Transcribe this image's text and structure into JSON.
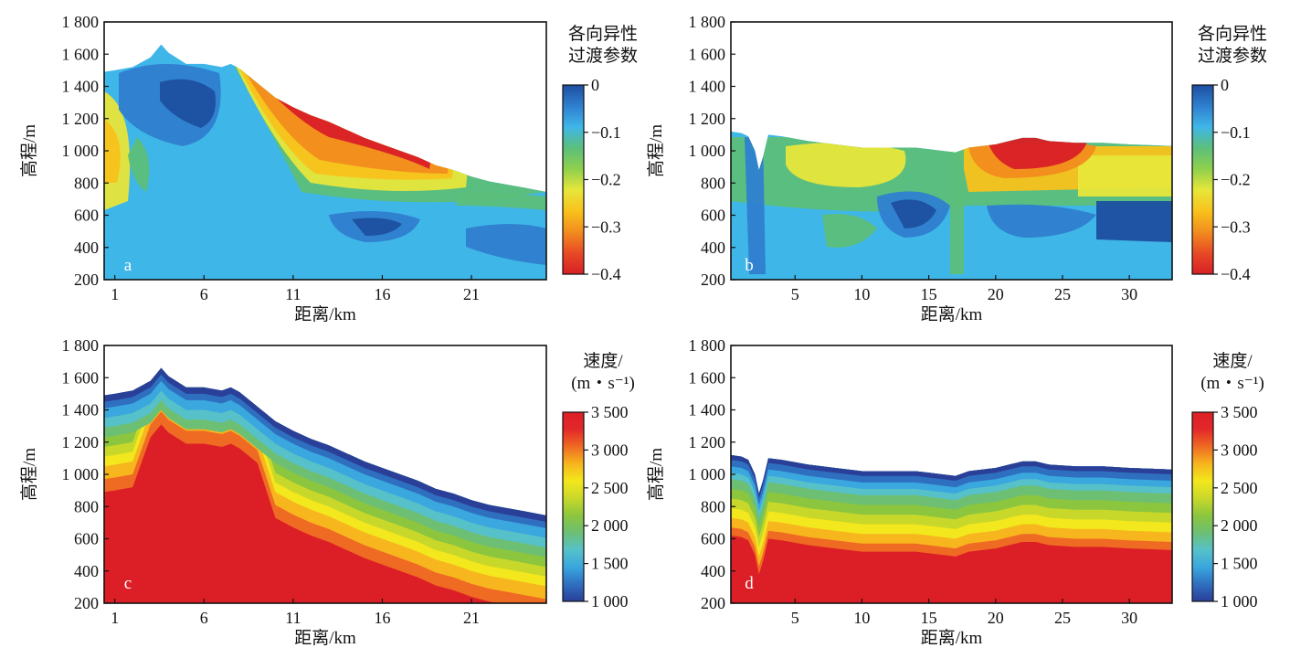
{
  "chart_data": [
    {
      "panel": "a",
      "type": "heatmap",
      "xlabel": "距离/km",
      "ylabel": "高程/m",
      "xlim": [
        0.4,
        25.2
      ],
      "ylim": [
        200,
        1800
      ],
      "x_ticks": [
        1,
        6,
        11,
        16,
        21
      ],
      "y_ticks": [
        200,
        400,
        600,
        800,
        1000,
        1200,
        1400,
        1600,
        1800
      ],
      "y_tick_labels": [
        "200",
        "400",
        "600",
        "800",
        "1 000",
        "1 200",
        "1 400",
        "1 600",
        "1 800"
      ],
      "surface": {
        "x": [
          0.4,
          1,
          2,
          3,
          3.6,
          4,
          5,
          6,
          7,
          7.5,
          8,
          9,
          10,
          11,
          12,
          13,
          14,
          15,
          16,
          17,
          18,
          19,
          20,
          21,
          22,
          23,
          24,
          25.2
        ],
        "elevation": [
          1490,
          1500,
          1520,
          1580,
          1660,
          1610,
          1540,
          1540,
          1520,
          1540,
          1510,
          1420,
          1330,
          1270,
          1220,
          1180,
          1130,
          1080,
          1040,
          1000,
          960,
          910,
          880,
          840,
          810,
          790,
          770,
          745
        ]
      },
      "colorbar": {
        "title": [
          "各向异性",
          "过渡参数"
        ],
        "range": [
          -0.4,
          0
        ],
        "ticks": [
          0,
          -0.1,
          -0.2,
          -0.3,
          -0.4
        ],
        "tick_labels": [
          "0",
          "−0.1",
          "−0.2",
          "−0.3",
          "−0.4"
        ]
      }
    },
    {
      "panel": "b",
      "type": "heatmap",
      "xlabel": "距离/km",
      "ylabel": "高程/m",
      "xlim": [
        0.2,
        33.2
      ],
      "ylim": [
        200,
        1800
      ],
      "x_ticks": [
        5,
        10,
        15,
        20,
        25,
        30
      ],
      "y_ticks": [
        200,
        400,
        600,
        800,
        1000,
        1200,
        1400,
        1600,
        1800
      ],
      "y_tick_labels": [
        "200",
        "400",
        "600",
        "800",
        "1 000",
        "1 200",
        "1 400",
        "1 600",
        "1 800"
      ],
      "surface": {
        "x": [
          0.2,
          1,
          1.5,
          2,
          2.3,
          2.6,
          3,
          4,
          6,
          8,
          10,
          12,
          14,
          16,
          17,
          18,
          20,
          21,
          22,
          23,
          24,
          26,
          28,
          30,
          33.2
        ],
        "elevation": [
          1120,
          1110,
          1090,
          1000,
          880,
          960,
          1100,
          1090,
          1060,
          1040,
          1020,
          1020,
          1020,
          1000,
          990,
          1020,
          1040,
          1060,
          1080,
          1080,
          1060,
          1050,
          1050,
          1040,
          1030
        ]
      },
      "colorbar": {
        "title": [
          "各向异性",
          "过渡参数"
        ],
        "range": [
          -0.4,
          0
        ],
        "ticks": [
          0,
          -0.1,
          -0.2,
          -0.3,
          -0.4
        ],
        "tick_labels": [
          "0",
          "−0.1",
          "−0.2",
          "−0.3",
          "−0.4"
        ]
      }
    },
    {
      "panel": "c",
      "type": "heatmap",
      "xlabel": "距离/km",
      "ylabel": "高程/m",
      "xlim": [
        0.4,
        25.2
      ],
      "ylim": [
        200,
        1800
      ],
      "x_ticks": [
        1,
        6,
        11,
        16,
        21
      ],
      "y_ticks": [
        200,
        400,
        600,
        800,
        1000,
        1200,
        1400,
        1600,
        1800
      ],
      "y_tick_labels": [
        "200",
        "400",
        "600",
        "800",
        "1 000",
        "1 200",
        "1 400",
        "1 600",
        "1 800"
      ],
      "surface": {
        "x": [
          0.4,
          1,
          2,
          3,
          3.6,
          4,
          5,
          6,
          7,
          7.5,
          8,
          9,
          10,
          11,
          12,
          13,
          14,
          15,
          16,
          17,
          18,
          19,
          20,
          21,
          22,
          23,
          24,
          25.2
        ],
        "elevation": [
          1490,
          1500,
          1520,
          1580,
          1660,
          1610,
          1540,
          1540,
          1520,
          1540,
          1510,
          1420,
          1330,
          1270,
          1220,
          1180,
          1130,
          1080,
          1040,
          1000,
          960,
          910,
          880,
          840,
          810,
          790,
          770,
          745
        ]
      },
      "colorbar": {
        "title": [
          "速度/",
          "(m・s⁻¹)"
        ],
        "range": [
          1000,
          3500
        ],
        "ticks": [
          3500,
          3000,
          2500,
          2000,
          1500,
          1000
        ],
        "tick_labels": [
          "3 500",
          "3 000",
          "2 500",
          "2 000",
          "1 500",
          "1 000"
        ]
      }
    },
    {
      "panel": "d",
      "type": "heatmap",
      "xlabel": "距离/km",
      "ylabel": "高程/m",
      "xlim": [
        0.2,
        33.2
      ],
      "ylim": [
        200,
        1800
      ],
      "x_ticks": [
        5,
        10,
        15,
        20,
        25,
        30
      ],
      "y_ticks": [
        200,
        400,
        600,
        800,
        1000,
        1200,
        1400,
        1600,
        1800
      ],
      "y_tick_labels": [
        "200",
        "400",
        "600",
        "800",
        "1 000",
        "1 200",
        "1 400",
        "1 600",
        "1 800"
      ],
      "surface": {
        "x": [
          0.2,
          1,
          1.5,
          2,
          2.3,
          2.6,
          3,
          4,
          6,
          8,
          10,
          12,
          14,
          16,
          17,
          18,
          20,
          21,
          22,
          23,
          24,
          26,
          28,
          30,
          33.2
        ],
        "elevation": [
          1120,
          1110,
          1090,
          1000,
          880,
          960,
          1100,
          1090,
          1060,
          1040,
          1020,
          1020,
          1020,
          1000,
          990,
          1020,
          1040,
          1060,
          1080,
          1080,
          1060,
          1050,
          1050,
          1040,
          1030
        ]
      },
      "colorbar": {
        "title": [
          "速度/",
          "(m・s⁻¹)"
        ],
        "range": [
          1000,
          3500
        ],
        "ticks": [
          3500,
          3000,
          2500,
          2000,
          1500,
          1000
        ],
        "tick_labels": [
          "3 500",
          "3 000",
          "2 500",
          "2 000",
          "1 500",
          "1 000"
        ]
      }
    }
  ],
  "colors": {
    "anisotropy_scale": [
      "#1e4fa0",
      "#2f7fcf",
      "#3fb6e8",
      "#5cbf7a",
      "#8fd04c",
      "#e7e63a",
      "#f8c21c",
      "#f28c1e",
      "#e84a25",
      "#d81f26"
    ],
    "velocity_scale": [
      "#2a3f98",
      "#2f6fc0",
      "#3aa7de",
      "#56c1c9",
      "#6dbf73",
      "#8cc63e",
      "#c8d82a",
      "#f3e71d",
      "#f7b51e",
      "#ef6a23",
      "#e3282a",
      "#dc1f26"
    ]
  }
}
